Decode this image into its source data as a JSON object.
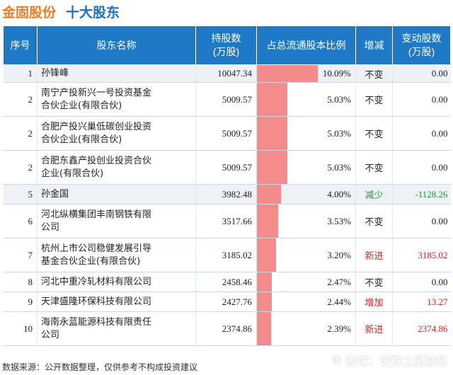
{
  "title": {
    "company": "金固股份",
    "subtitle": "十大股东"
  },
  "columns": {
    "idx": "序号",
    "name": "股东名称",
    "holding_line1": "持股数",
    "holding_line2": "(万股)",
    "ratio": "占总流通股本比例",
    "change": "增减",
    "change_shares_line1": "变动股数",
    "change_shares_line2": "(万股)"
  },
  "colors": {
    "header_bg": "#1e79c6",
    "bar": "#f47f7f",
    "increase": "#e02020",
    "decrease": "#1a9a3a",
    "title_company": "#ef7c1e",
    "title_sub": "#1a6fbf"
  },
  "rows": [
    {
      "idx": "1",
      "name_line1": "孙锋峰",
      "name_line2": "",
      "holding": "10047.34",
      "ratio": "10.09%",
      "ratio_value": 10.09,
      "change": "不变",
      "change_color": "",
      "change_shares": "0.00",
      "shaded": true
    },
    {
      "idx": "2",
      "name_line1": "南宁产投新兴一号投资基金",
      "name_line2": "合伙企业(有限合伙)",
      "holding": "5009.57",
      "ratio": "5.03%",
      "ratio_value": 5.03,
      "change": "不变",
      "change_color": "",
      "change_shares": "0.00",
      "shaded": false
    },
    {
      "idx": "2",
      "name_line1": "合肥产投兴巢低碳创业投资",
      "name_line2": "合伙企业(有限合伙)",
      "holding": "5009.57",
      "ratio": "5.03%",
      "ratio_value": 5.03,
      "change": "不变",
      "change_color": "",
      "change_shares": "0.00",
      "shaded": false
    },
    {
      "idx": "2",
      "name_line1": "合肥东鑫产投创业投资合伙",
      "name_line2": "企业(有限合伙)",
      "holding": "5009.57",
      "ratio": "5.03%",
      "ratio_value": 5.03,
      "change": "不变",
      "change_color": "",
      "change_shares": "0.00",
      "shaded": false
    },
    {
      "idx": "5",
      "name_line1": "孙金国",
      "name_line2": "",
      "holding": "3982.48",
      "ratio": "4.00%",
      "ratio_value": 4.0,
      "change": "减少",
      "change_color": "green",
      "change_shares": "-1128.26",
      "shaded": true
    },
    {
      "idx": "6",
      "name_line1": "河北纵横集团丰南钢铁有限",
      "name_line2": "公司",
      "holding": "3517.66",
      "ratio": "3.53%",
      "ratio_value": 3.53,
      "change": "不变",
      "change_color": "",
      "change_shares": "0.00",
      "shaded": false
    },
    {
      "idx": "7",
      "name_line1": "杭州上市公司稳健发展引导",
      "name_line2": "基金合伙企业(有限合伙)",
      "holding": "3185.02",
      "ratio": "3.20%",
      "ratio_value": 3.2,
      "change": "新进",
      "change_color": "red",
      "change_shares": "3185.02",
      "shaded": false
    },
    {
      "idx": "8",
      "name_line1": "河北中重冷轧材料有限公司",
      "name_line2": "",
      "holding": "2458.46",
      "ratio": "2.47%",
      "ratio_value": 2.47,
      "change": "不变",
      "change_color": "",
      "change_shares": "0.00",
      "shaded": false
    },
    {
      "idx": "9",
      "name_line1": "天津盛隆环保科技有限公司",
      "name_line2": "",
      "holding": "2427.76",
      "ratio": "2.44%",
      "ratio_value": 2.44,
      "change": "增加",
      "change_color": "red",
      "change_shares": "13.27",
      "shaded": false
    },
    {
      "idx": "10",
      "name_line1": "海南永蓝能源科技有限责任",
      "name_line2": "公司",
      "holding": "2374.86",
      "ratio": "2.39%",
      "ratio_value": 2.39,
      "change": "新进",
      "change_color": "red",
      "change_shares": "2374.86",
      "shaded": false
    }
  ],
  "ratio_scale_max": 10.09,
  "footer": {
    "source": "数据来源：公开数据整理，仅供参考不构成投资建议",
    "brand": "雪球：证券之星财经"
  }
}
